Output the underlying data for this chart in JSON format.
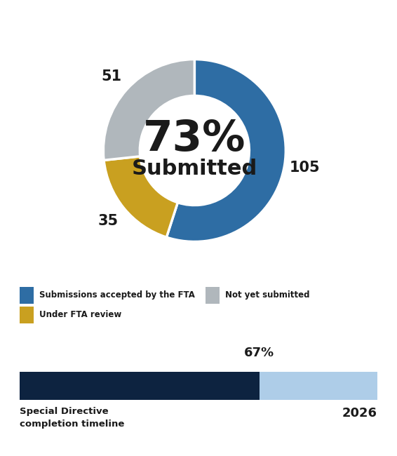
{
  "pie_values": [
    105,
    35,
    51
  ],
  "pie_colors": [
    "#2E6DA4",
    "#C9A020",
    "#B0B7BC"
  ],
  "pie_labels_vals": [
    105,
    35,
    51
  ],
  "center_text_pct": "73%",
  "center_text_sub": "Submitted",
  "legend_items": [
    {
      "label": "Submissions accepted by the FTA",
      "color": "#2E6DA4"
    },
    {
      "label": "Not yet submitted",
      "color": "#B0B7BC"
    },
    {
      "label": "Under FTA review",
      "color": "#C9A020"
    }
  ],
  "bar_done_pct": 0.67,
  "bar_done_color": "#0D2340",
  "bar_remaining_color": "#AECDE8",
  "bar_pct_label": "67%",
  "bar_left_label": "Special Directive\ncompletion timeline",
  "bar_right_label": "2026",
  "bg_color": "#FFFFFF"
}
